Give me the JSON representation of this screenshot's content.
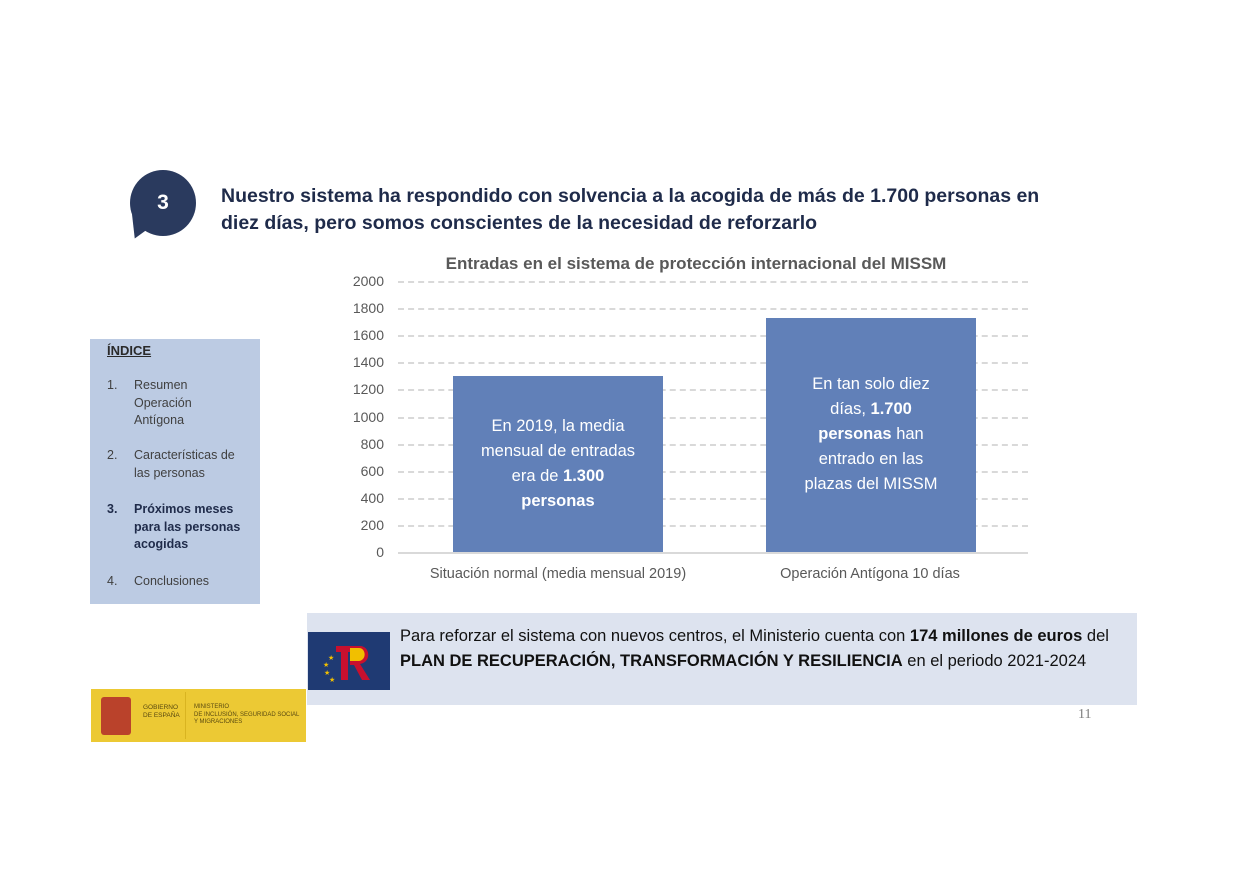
{
  "slide": {
    "badge_number": "3",
    "headline_line1": "Nuestro sistema ha respondido con solvencia a la acogida de más de 1.700 personas en",
    "headline_line2": "diez días, pero somos conscientes de la necesidad de reforzarlo",
    "page_number": "11"
  },
  "index": {
    "title": "ÍNDICE",
    "items": [
      {
        "num": "1.",
        "lines": [
          "Resumen",
          "Operación",
          "Antígona"
        ],
        "active": false
      },
      {
        "num": "2.",
        "lines": [
          "Características de",
          "las personas"
        ],
        "active": false
      },
      {
        "num": "3.",
        "lines": [
          "Próximos meses",
          "para las personas",
          "acogidas"
        ],
        "active": true
      },
      {
        "num": "4.",
        "lines": [
          "Conclusiones"
        ],
        "active": false
      }
    ]
  },
  "chart_data": {
    "type": "bar",
    "title": "Entradas en el sistema de protección internacional del MISSM",
    "categories": [
      "Situación normal (media mensual 2019)",
      "Operación Antígona 10 días"
    ],
    "values": [
      1300,
      1730
    ],
    "xlabel": "",
    "ylabel": "",
    "ylim": [
      0,
      2000
    ],
    "yticks": [
      0,
      200,
      400,
      600,
      800,
      1000,
      1200,
      1400,
      1600,
      1800,
      2000
    ],
    "grid": "horizontal dashed",
    "legend": "none",
    "bar_color": "#6180b8",
    "annotations": [
      {
        "bar": 0,
        "parts": [
          {
            "t": "En 2019, la media",
            "b": false
          },
          {
            "t": "mensual de entradas",
            "b": false
          },
          {
            "t": "era de ",
            "b": false,
            "inline_next": "1.300"
          },
          {
            "t": "personas",
            "b": true
          }
        ]
      },
      {
        "bar": 1,
        "parts": [
          {
            "t": "En tan solo diez"
          },
          {
            "t": "días, 1.700"
          },
          {
            "t": "personas han"
          },
          {
            "t": "entrado en las"
          },
          {
            "t": "plazas del MISSM"
          }
        ]
      }
    ]
  },
  "bar_text": {
    "b1_l1": "En 2019, la media",
    "b1_l2": "mensual de entradas",
    "b1_l3a": "era de ",
    "b1_l3b": "1.300",
    "b1_l4": "personas",
    "b2_l1": "En tan solo diez",
    "b2_l2a": "días, ",
    "b2_l2b": "1.700",
    "b2_l3a": "personas",
    "b2_l3b": " han",
    "b2_l4": "entrado en las",
    "b2_l5": "plazas del MISSM"
  },
  "banner": {
    "t1": "Para reforzar el sistema con nuevos centros, el Ministerio cuenta con ",
    "t2": "174 millones de euros",
    "t3": " del ",
    "t4": "PLAN DE RECUPERACIÓN, TRANSFORMACIÓN Y RESILIENCIA",
    "t5": " en el periodo 2021-2024",
    "logo": "prtr-logo"
  },
  "gov_logo": {
    "left": "GOBIERNO\nDE ESPAÑA",
    "right_l1": "MINISTERIO",
    "right_l2": "DE INCLUSIÓN, SEGURIDAD SOCIAL",
    "right_l3": "Y MIGRACIONES"
  },
  "colors": {
    "navy": "#2a3a5e",
    "bar": "#6180b8",
    "index_bg": "#bccbe3",
    "banner_bg": "#dde3ef",
    "gov_yellow": "#ecc934",
    "prtr_red": "#c8102e",
    "prtr_yellow": "#f1bf00"
  }
}
